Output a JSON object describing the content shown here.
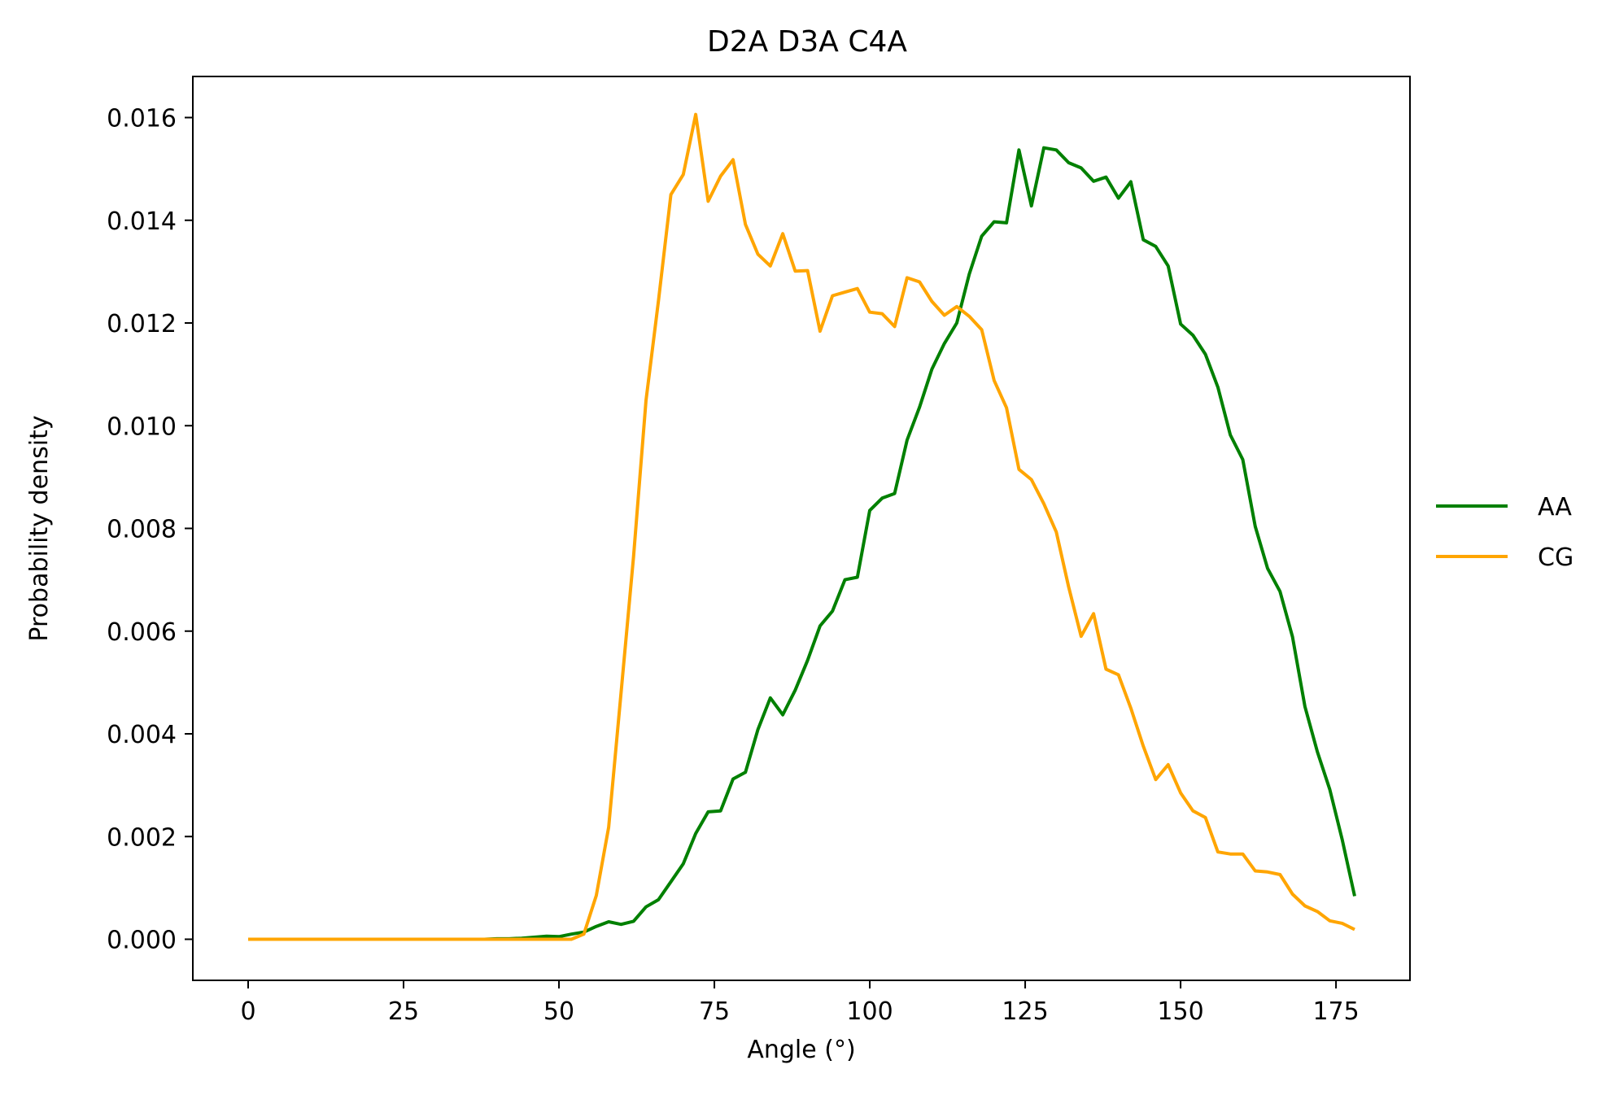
{
  "chart_data": {
    "type": "line",
    "title": "D2A D3A C4A",
    "xlabel": "Angle (°)",
    "ylabel": "Probability density",
    "xlim": [
      -8.9,
      186.9
    ],
    "ylim": [
      -0.0008,
      0.0168
    ],
    "xticks": [
      0,
      25,
      50,
      75,
      100,
      125,
      150,
      175
    ],
    "yticks": [
      0.0,
      0.002,
      0.004,
      0.006,
      0.008,
      0.01,
      0.012,
      0.014,
      0.016
    ],
    "ytick_labels": [
      "0.000",
      "0.002",
      "0.004",
      "0.006",
      "0.008",
      "0.010",
      "0.012",
      "0.014",
      "0.016"
    ],
    "grid": false,
    "legend_position": "right-outside",
    "x": [
      0,
      2,
      4,
      6,
      8,
      10,
      12,
      14,
      16,
      18,
      20,
      22,
      24,
      26,
      28,
      30,
      32,
      34,
      36,
      38,
      40,
      42,
      44,
      46,
      48,
      50,
      52,
      54,
      56,
      58,
      60,
      62,
      64,
      66,
      68,
      70,
      72,
      74,
      76,
      78,
      80,
      82,
      84,
      86,
      88,
      90,
      92,
      94,
      96,
      98,
      100,
      102,
      104,
      106,
      108,
      110,
      112,
      114,
      116,
      118,
      120,
      122,
      124,
      126,
      128,
      130,
      132,
      134,
      136,
      138,
      140,
      142,
      144,
      146,
      148,
      150,
      152,
      154,
      156,
      158,
      160,
      162,
      164,
      166,
      168,
      170,
      172,
      174,
      176,
      178
    ],
    "series": [
      {
        "name": "AA",
        "color": "#008000",
        "values": [
          0,
          0,
          0,
          0,
          0,
          0,
          0,
          0,
          0,
          0,
          0,
          0,
          0,
          0,
          0,
          0,
          0,
          0,
          0,
          0,
          1e-05,
          1e-05,
          2e-05,
          4e-05,
          6e-05,
          5e-05,
          0.0001,
          0.00014,
          0.00025,
          0.00034,
          0.00029,
          0.00035,
          0.00063,
          0.00077,
          0.00112,
          0.00147,
          0.00206,
          0.00248,
          0.0025,
          0.00312,
          0.00325,
          0.00408,
          0.0047,
          0.00437,
          0.00485,
          0.00543,
          0.0061,
          0.00639,
          0.007,
          0.00705,
          0.00835,
          0.00859,
          0.00868,
          0.00972,
          0.01036,
          0.0111,
          0.0116,
          0.012,
          0.01295,
          0.01369,
          0.01397,
          0.01395,
          0.01537,
          0.01428,
          0.01541,
          0.01537,
          0.01512,
          0.01502,
          0.01476,
          0.01484,
          0.01443,
          0.01475,
          0.01362,
          0.01349,
          0.01311,
          0.01198,
          0.01176,
          0.01139,
          0.01075,
          0.00982,
          0.00934,
          0.00804,
          0.00722,
          0.00677,
          0.00589,
          0.00453,
          0.00365,
          0.00292,
          0.00194,
          0.00084
        ]
      },
      {
        "name": "CG",
        "color": "#FFA500",
        "values": [
          0,
          0,
          0,
          0,
          0,
          0,
          0,
          0,
          0,
          0,
          0,
          0,
          0,
          0,
          0,
          0,
          0,
          0,
          0,
          0,
          0,
          0,
          0,
          0,
          0,
          0,
          0,
          0.0001,
          0.00085,
          0.00218,
          0.00481,
          0.00745,
          0.01049,
          0.01243,
          0.0145,
          0.01489,
          0.01606,
          0.01437,
          0.01486,
          0.01518,
          0.01392,
          0.01334,
          0.01311,
          0.01374,
          0.01301,
          0.01302,
          0.01184,
          0.01253,
          0.0126,
          0.01267,
          0.01221,
          0.01218,
          0.01193,
          0.01288,
          0.0128,
          0.01242,
          0.01215,
          0.01232,
          0.01213,
          0.01187,
          0.01088,
          0.01035,
          0.00915,
          0.00895,
          0.00848,
          0.00793,
          0.00686,
          0.0059,
          0.00634,
          0.00526,
          0.00515,
          0.0045,
          0.00376,
          0.00311,
          0.0034,
          0.00285,
          0.0025,
          0.00237,
          0.0017,
          0.00166,
          0.00166,
          0.00133,
          0.00131,
          0.00126,
          0.00088,
          0.00065,
          0.00054,
          0.00036,
          0.00031,
          0.00019
        ]
      }
    ]
  }
}
